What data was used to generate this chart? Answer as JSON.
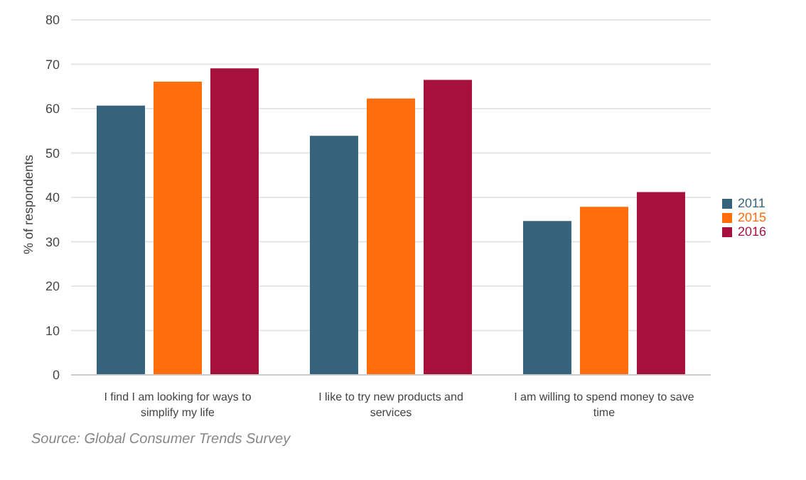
{
  "chart_data": {
    "type": "bar",
    "ylabel": "% of respondents",
    "categories": [
      "I find I am looking for ways to simplify my life",
      "I like to try new products and services",
      "I am willing to spend money to save time"
    ],
    "series": [
      {
        "name": "2011",
        "color": "#35637c",
        "values": [
          60.7,
          53.9,
          34.7
        ]
      },
      {
        "name": "2015",
        "color": "#ff6d0d",
        "values": [
          66.1,
          62.3,
          37.9
        ]
      },
      {
        "name": "2016",
        "color": "#a6103c",
        "values": [
          69.1,
          66.5,
          41.2
        ]
      }
    ],
    "ylim": [
      0,
      80
    ],
    "yticks": [
      0,
      10,
      20,
      30,
      40,
      50,
      60,
      70,
      80
    ],
    "grid": "y",
    "legend": "right",
    "annotations": [
      "Source: Global Consumer Trends Survey"
    ]
  }
}
